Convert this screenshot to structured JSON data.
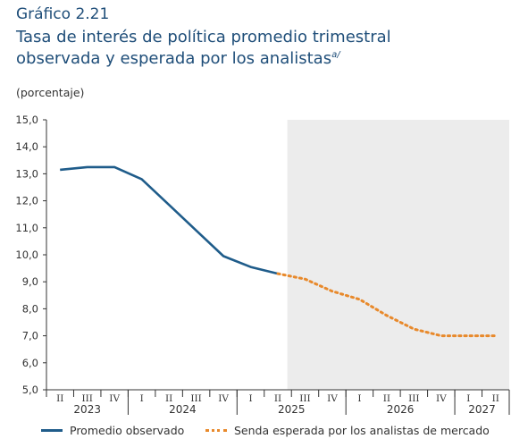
{
  "header": {
    "figure_label": "Gráfico 2.21",
    "title_line1": "Tasa de interés de política promedio trimestral",
    "title_line2": "observada y esperada por los analistas",
    "title_note": "a/",
    "unit": "(porcentaje)"
  },
  "colors": {
    "observed": "#1f5c8a",
    "expected": "#e8892b",
    "shade": "#ececec",
    "text": "#1f4e79"
  },
  "chart_data": {
    "type": "line",
    "ylim": [
      5.0,
      15.0
    ],
    "y_ticks": [
      "5,0",
      "6,0",
      "7,0",
      "8,0",
      "9,0",
      "10,0",
      "11,0",
      "12,0",
      "13,0",
      "14,0",
      "15,0"
    ],
    "quarters": [
      "II",
      "III",
      "IV",
      "I",
      "II",
      "III",
      "IV",
      "I",
      "II",
      "III",
      "IV",
      "I",
      "II",
      "III",
      "IV",
      "I",
      "II"
    ],
    "years": [
      {
        "label": "2023",
        "start": 0,
        "end": 2
      },
      {
        "label": "2024",
        "start": 3,
        "end": 6
      },
      {
        "label": "2025",
        "start": 7,
        "end": 10
      },
      {
        "label": "2026",
        "start": 11,
        "end": 14
      },
      {
        "label": "2027",
        "start": 15,
        "end": 16
      }
    ],
    "shaded_from_index": 8,
    "series": [
      {
        "name": "Promedio observado",
        "style": "solid",
        "x_index": [
          0,
          1,
          2,
          3,
          4,
          5,
          6,
          7,
          8
        ],
        "values": [
          13.15,
          13.25,
          13.25,
          12.8,
          11.85,
          10.9,
          9.95,
          9.55,
          9.3
        ]
      },
      {
        "name": "Senda esperada por los analistas de mercado",
        "style": "dotted",
        "x_index": [
          8,
          9,
          10,
          11,
          12,
          13,
          14,
          15,
          16
        ],
        "values": [
          9.3,
          9.1,
          8.65,
          8.35,
          7.75,
          7.25,
          7.0,
          7.0,
          7.0
        ]
      }
    ]
  }
}
